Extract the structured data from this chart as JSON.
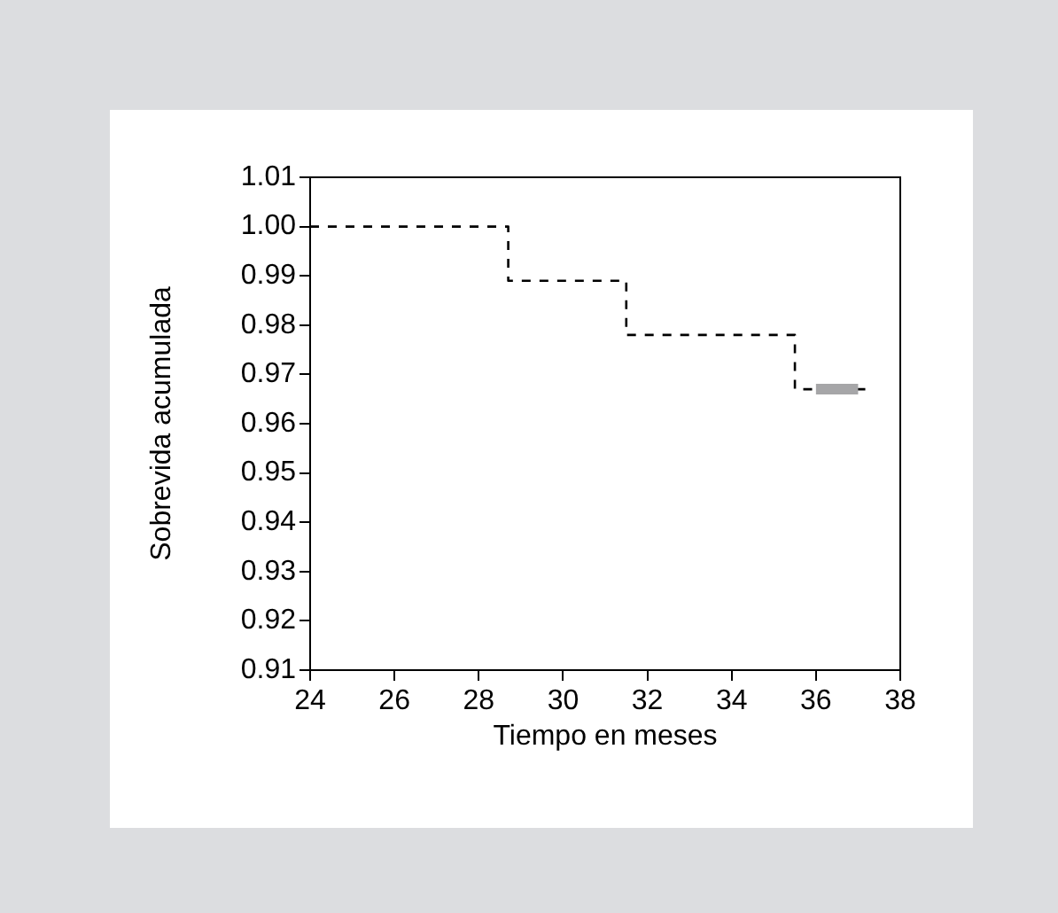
{
  "chart_data": {
    "type": "step",
    "xlabel": "Tiempo en meses",
    "ylabel": "Sobrevida acumulada",
    "xlim": [
      24,
      38
    ],
    "xticks": [
      24,
      26,
      28,
      30,
      32,
      34,
      36,
      38
    ],
    "ylim": [
      0.91,
      1.01
    ],
    "yticks": [
      {
        "value": 0.91,
        "label": "0.91"
      },
      {
        "value": 0.92,
        "label": "0.92"
      },
      {
        "value": 0.93,
        "label": "0.93"
      },
      {
        "value": 0.94,
        "label": "0.94"
      },
      {
        "value": 0.95,
        "label": "0.95"
      },
      {
        "value": 0.96,
        "label": "0.96"
      },
      {
        "value": 0.97,
        "label": "0.97"
      },
      {
        "value": 0.98,
        "label": "0.98"
      },
      {
        "value": 0.99,
        "label": "0.99"
      },
      {
        "value": 1.0,
        "label": "1.00"
      },
      {
        "value": 1.01,
        "label": "1.01"
      }
    ],
    "series": [
      {
        "color": "#000000",
        "line_style": "dashed",
        "x": [
          24,
          28.7,
          31.5,
          35.5,
          37.2
        ],
        "values": [
          1.0,
          0.989,
          0.978,
          0.967,
          0.967
        ]
      },
      {
        "type": "line",
        "color": "#a6a6a8",
        "line_style": "solid",
        "x": [
          36.0,
          37.0
        ],
        "values": [
          0.967,
          0.967
        ]
      }
    ],
    "grid": false,
    "legend": false,
    "marker": "none"
  }
}
